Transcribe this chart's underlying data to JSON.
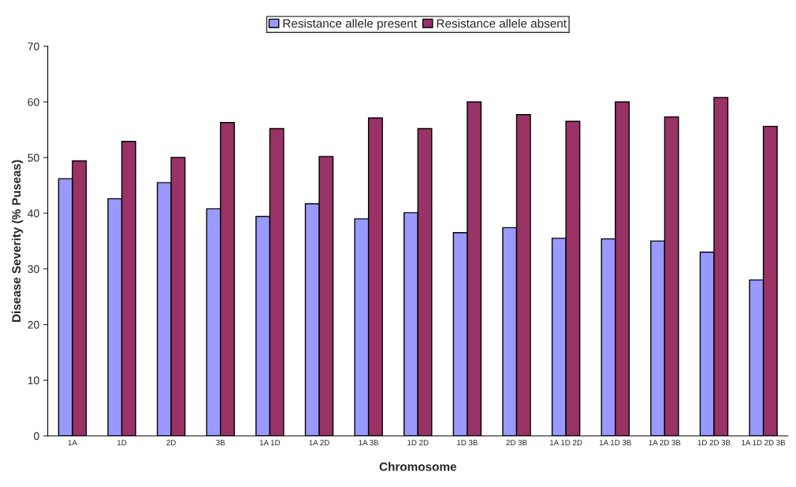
{
  "chart_data": {
    "type": "bar",
    "xlabel": "Chromosome",
    "ylabel": "Disease Severity (% Puseas)",
    "categories": [
      "1A",
      "1D",
      "2D",
      "3B",
      "1A 1D",
      "1A 2D",
      "1A 3B",
      "1D 2D",
      "1D 3B",
      "2D 3B",
      "1A 1D 2D",
      "1A 1D 3B",
      "1A 2D 3B",
      "1D 2D 3B",
      "1A 1D 2D 3B"
    ],
    "series": [
      {
        "name": "Resistance allele present",
        "color": "#9999ff",
        "values": [
          46.2,
          42.6,
          45.5,
          40.8,
          39.4,
          41.7,
          39.0,
          40.1,
          36.5,
          37.4,
          35.5,
          35.4,
          35.0,
          33.0,
          28.0
        ]
      },
      {
        "name": "Resistance allele absent",
        "color": "#993366",
        "values": [
          49.4,
          52.9,
          50.0,
          56.3,
          55.2,
          50.2,
          57.1,
          55.2,
          60.0,
          57.7,
          56.5,
          60.0,
          57.3,
          60.8,
          55.6
        ]
      }
    ],
    "ylim": [
      0,
      70
    ],
    "yticks": [
      0,
      10,
      20,
      30,
      40,
      50,
      60,
      70
    ],
    "grid": false,
    "legend": "top"
  }
}
